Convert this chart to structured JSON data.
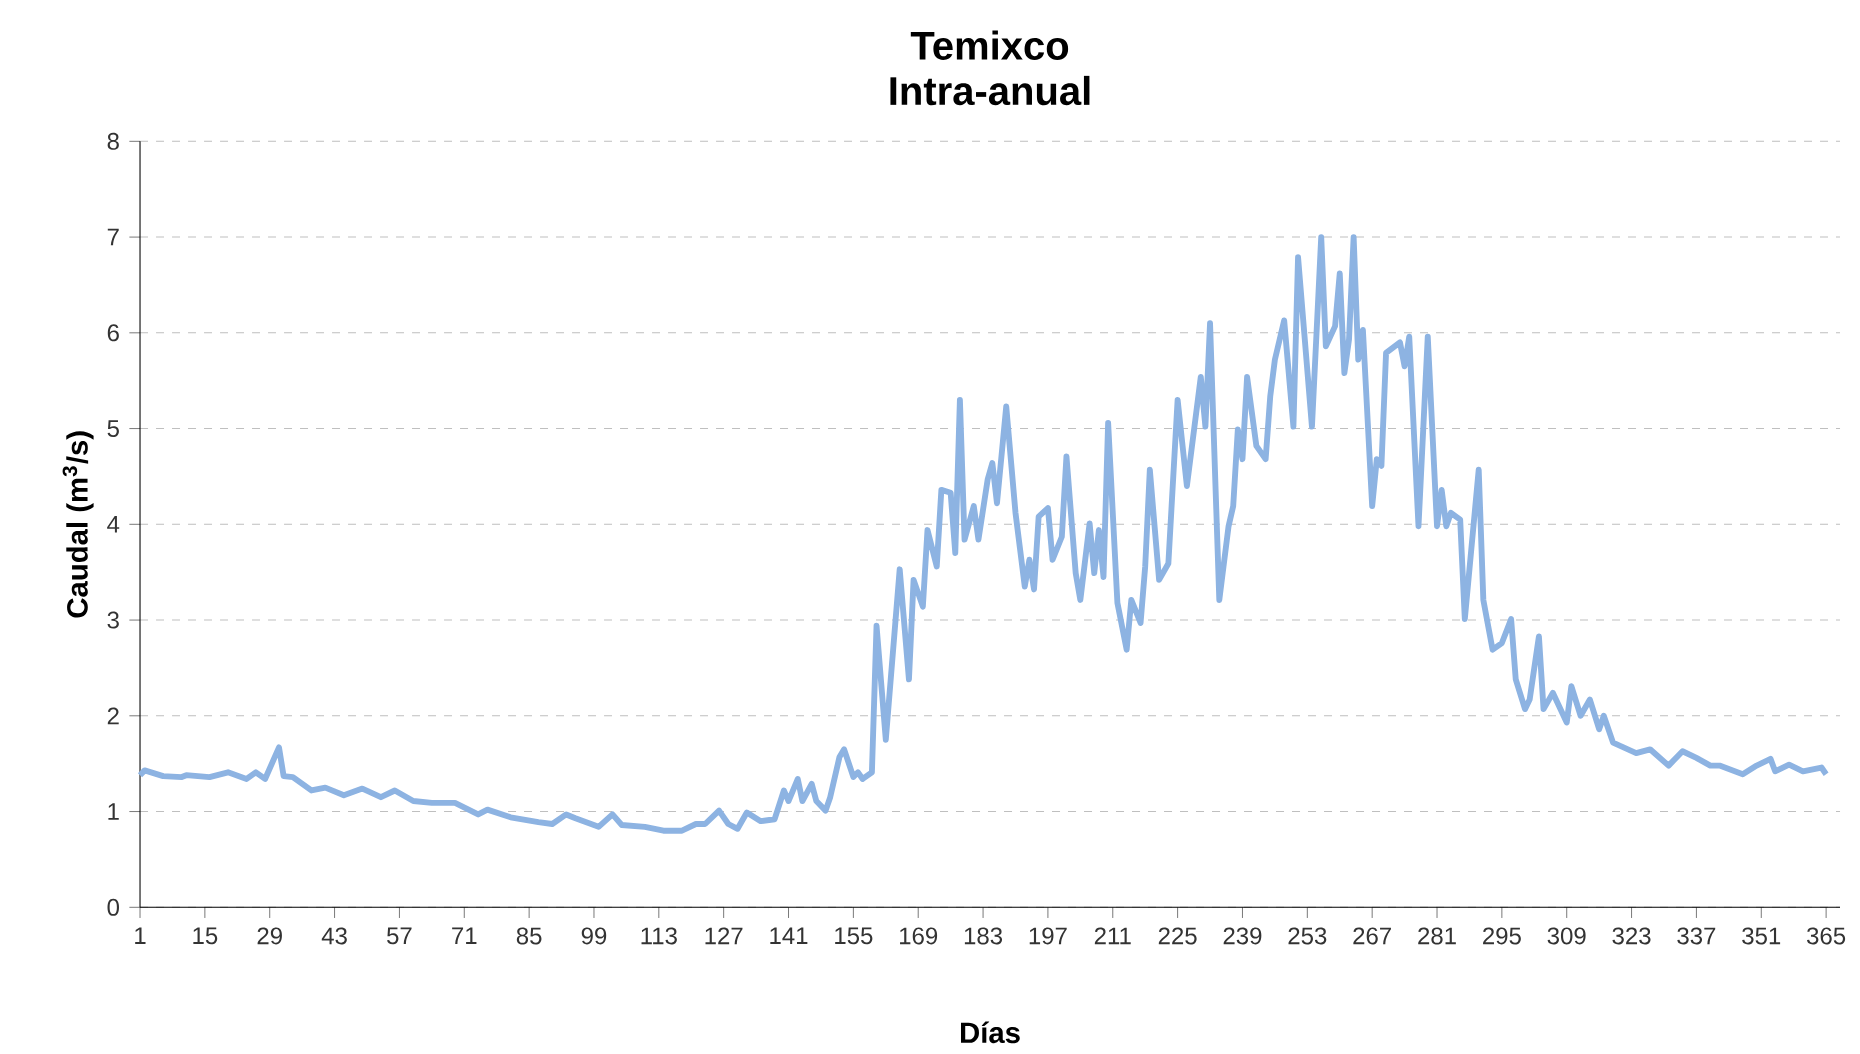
{
  "chart_data": {
    "type": "line",
    "title": "Temixco",
    "subtitle": "Intra-anual",
    "xlabel": "Días",
    "ylabel": "Caudal (m$^{3}$/s)",
    "x": [
      1,
      2,
      6,
      10,
      11,
      16,
      20,
      24,
      26,
      28,
      31,
      32,
      34,
      38,
      41,
      45,
      49,
      53,
      56,
      60,
      64,
      69,
      74,
      76,
      81,
      87,
      90,
      93,
      95,
      100,
      103,
      105,
      110,
      114,
      118,
      121,
      123,
      126,
      128,
      130,
      132,
      135,
      138,
      140,
      141,
      143,
      144,
      146,
      147,
      149,
      150,
      152,
      153,
      155,
      156,
      157,
      159,
      160,
      162,
      165,
      167,
      168,
      170,
      171,
      173,
      174,
      176,
      177,
      178,
      179,
      181,
      182,
      184,
      185,
      186,
      188,
      190,
      192,
      193,
      194,
      195,
      197,
      198,
      200,
      201,
      203,
      204,
      206,
      207,
      208,
      209,
      210,
      212,
      214,
      215,
      217,
      218,
      219,
      221,
      223,
      225,
      227,
      230,
      231,
      232,
      234,
      236,
      237,
      238,
      239,
      240,
      242,
      244,
      245,
      246,
      248,
      250,
      251,
      254,
      256,
      257,
      259,
      260,
      261,
      262,
      263,
      264,
      265,
      267,
      268,
      269,
      270,
      273,
      274,
      275,
      277,
      279,
      281,
      282,
      283,
      284,
      286,
      287,
      290,
      291,
      293,
      295,
      297,
      298,
      300,
      301,
      303,
      304,
      306,
      309,
      310,
      312,
      314,
      316,
      317,
      319,
      324,
      327,
      331,
      334,
      337,
      340,
      342,
      347,
      350,
      353,
      354,
      357,
      360,
      364,
      365
    ],
    "series": [
      {
        "color": "#8db3e2",
        "values": [
          1.38,
          1.43,
          1.37,
          1.36,
          1.38,
          1.36,
          1.41,
          1.34,
          1.41,
          1.34,
          1.67,
          1.37,
          1.36,
          1.22,
          1.25,
          1.17,
          1.24,
          1.15,
          1.22,
          1.11,
          1.09,
          1.09,
          0.97,
          1.02,
          0.94,
          0.89,
          0.87,
          0.97,
          0.93,
          0.84,
          0.97,
          0.86,
          0.84,
          0.8,
          0.8,
          0.87,
          0.87,
          1.01,
          0.87,
          0.82,
          0.99,
          0.9,
          0.92,
          1.22,
          1.11,
          1.34,
          1.11,
          1.29,
          1.11,
          1.01,
          1.15,
          1.57,
          1.65,
          1.36,
          1.41,
          1.34,
          1.41,
          2.94,
          1.75,
          3.53,
          2.38,
          3.42,
          3.14,
          3.94,
          3.56,
          4.36,
          4.33,
          3.7,
          5.3,
          3.84,
          4.19,
          3.84,
          4.47,
          4.64,
          4.22,
          5.23,
          4.12,
          3.35,
          3.63,
          3.32,
          4.08,
          4.17,
          3.63,
          3.87,
          4.71,
          3.49,
          3.21,
          4.01,
          3.49,
          3.94,
          3.45,
          5.06,
          3.18,
          2.69,
          3.21,
          2.97,
          3.56,
          4.57,
          3.42,
          3.59,
          5.3,
          4.4,
          5.54,
          5.02,
          6.1,
          3.21,
          3.98,
          4.19,
          4.99,
          4.68,
          5.54,
          4.82,
          4.68,
          5.34,
          5.72,
          6.13,
          5.02,
          6.79,
          5.02,
          7.0,
          5.86,
          6.07,
          6.62,
          5.58,
          5.93,
          7.0,
          5.72,
          6.03,
          4.19,
          4.68,
          4.61,
          5.79,
          5.9,
          5.65,
          5.96,
          3.98,
          5.96,
          3.98,
          4.36,
          3.98,
          4.12,
          4.05,
          3.01,
          4.57,
          3.21,
          2.69,
          2.76,
          3.01,
          2.38,
          2.07,
          2.17,
          2.83,
          2.07,
          2.24,
          1.93,
          2.31,
          2.0,
          2.17,
          1.86,
          2.0,
          1.72,
          1.61,
          1.65,
          1.48,
          1.63,
          1.56,
          1.48,
          1.48,
          1.39,
          1.48,
          1.55,
          1.42,
          1.49,
          1.42,
          1.46,
          1.39
        ]
      }
    ],
    "xlim": [
      1,
      368
    ],
    "xticks": [
      1,
      15,
      29,
      43,
      57,
      71,
      85,
      99,
      113,
      127,
      141,
      155,
      169,
      183,
      197,
      211,
      225,
      239,
      253,
      267,
      281,
      295,
      309,
      323,
      337,
      351,
      365
    ],
    "ylim": [
      0,
      8
    ],
    "yticks": [
      0,
      1,
      2,
      3,
      4,
      5,
      6,
      7,
      8
    ],
    "grid": "y"
  }
}
